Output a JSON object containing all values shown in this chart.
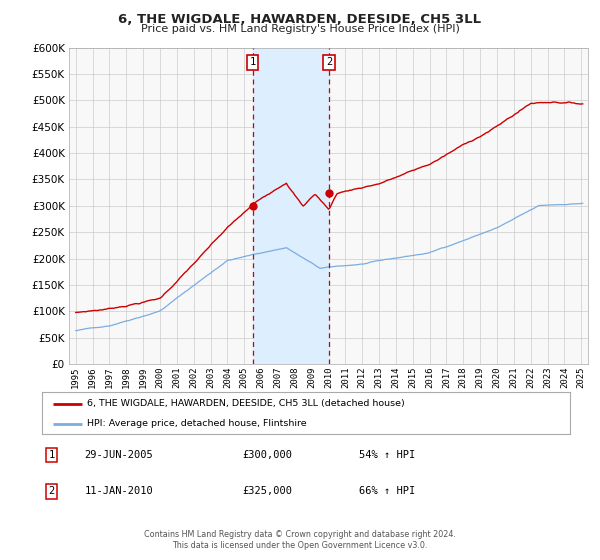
{
  "title": "6, THE WIGDALE, HAWARDEN, DEESIDE, CH5 3LL",
  "subtitle": "Price paid vs. HM Land Registry's House Price Index (HPI)",
  "legend_line1": "6, THE WIGDALE, HAWARDEN, DEESIDE, CH5 3LL (detached house)",
  "legend_line2": "HPI: Average price, detached house, Flintshire",
  "table_row1_num": "1",
  "table_row1_date": "29-JUN-2005",
  "table_row1_price": "£300,000",
  "table_row1_hpi": "54% ↑ HPI",
  "table_row2_num": "2",
  "table_row2_date": "11-JAN-2010",
  "table_row2_price": "£325,000",
  "table_row2_hpi": "66% ↑ HPI",
  "footer1": "Contains HM Land Registry data © Crown copyright and database right 2024.",
  "footer2": "This data is licensed under the Open Government Licence v3.0.",
  "ylim": [
    0,
    600000
  ],
  "yticks": [
    0,
    50000,
    100000,
    150000,
    200000,
    250000,
    300000,
    350000,
    400000,
    450000,
    500000,
    550000,
    600000
  ],
  "sale1_date": 2005.49,
  "sale1_price": 300000,
  "sale2_date": 2010.03,
  "sale2_price": 325000,
  "vline1": 2005.49,
  "vline2": 2010.03,
  "shade_color": "#ddeeff",
  "red_line_color": "#cc0000",
  "blue_line_color": "#7aade0",
  "bg_color": "#f8f8f8",
  "grid_color": "#cccccc",
  "title_color": "#222222",
  "box_color": "#cc0000",
  "xstart": 1995,
  "xend": 2025
}
